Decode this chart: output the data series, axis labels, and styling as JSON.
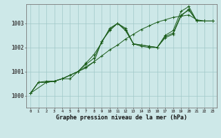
{
  "title": "Graphe pression niveau de la mer (hPa)",
  "bg_color": "#cde8e8",
  "line_color": "#1a5c1a",
  "grid_color": "#a0c8c8",
  "xlim": [
    -0.5,
    23.5
  ],
  "ylim": [
    999.5,
    1003.8
  ],
  "yticks": [
    1000,
    1001,
    1002,
    1003
  ],
  "xticks": [
    0,
    1,
    2,
    3,
    4,
    5,
    6,
    7,
    8,
    9,
    10,
    11,
    12,
    13,
    14,
    15,
    16,
    17,
    18,
    19,
    20,
    21,
    22,
    23
  ],
  "series": [
    {
      "x": [
        0,
        1,
        2,
        3,
        4,
        5,
        6,
        7,
        8,
        9,
        10,
        11,
        12,
        13,
        14,
        15,
        16,
        17,
        18,
        19,
        20,
        21,
        22,
        23
      ],
      "y": [
        1000.1,
        1000.55,
        1000.6,
        1000.6,
        1000.7,
        1000.85,
        1001.0,
        1001.2,
        1001.4,
        1001.65,
        1001.9,
        1002.1,
        1002.35,
        1002.55,
        1002.75,
        1002.9,
        1003.05,
        1003.15,
        1003.25,
        1003.3,
        1003.35,
        1003.15,
        1003.1,
        1003.1
      ]
    },
    {
      "x": [
        0,
        1,
        2,
        3,
        4,
        5,
        6,
        7,
        8,
        9,
        10,
        11,
        12,
        13,
        14,
        15,
        16,
        17,
        18,
        19,
        20,
        21,
        22,
        23
      ],
      "y": [
        1000.1,
        1000.55,
        1000.55,
        1000.6,
        1000.7,
        1000.85,
        1001.0,
        1001.15,
        1001.4,
        1002.25,
        1002.75,
        1003.0,
        1002.75,
        1002.15,
        1002.05,
        1002.0,
        1002.0,
        1002.45,
        1002.6,
        1003.35,
        1003.55,
        1003.1,
        1003.1,
        1003.1
      ]
    },
    {
      "x": [
        0,
        1,
        2,
        3,
        4,
        5,
        6,
        7,
        8,
        9,
        10,
        11,
        12,
        13,
        14,
        15,
        16,
        17,
        18,
        19,
        20,
        21,
        22,
        23
      ],
      "y": [
        1000.1,
        1000.55,
        1000.55,
        1000.6,
        1000.7,
        1000.85,
        1001.0,
        1001.35,
        1001.7,
        1002.2,
        1002.8,
        1003.0,
        1002.8,
        1002.15,
        1002.1,
        1002.05,
        1002.0,
        1002.5,
        1002.7,
        1003.5,
        1003.7,
        1003.1,
        1003.1,
        1003.1
      ]
    },
    {
      "x": [
        0,
        2,
        3,
        4,
        5,
        6,
        7,
        8,
        9,
        10,
        11,
        12,
        13,
        14,
        15,
        16,
        17,
        18,
        19,
        20,
        21,
        22,
        23
      ],
      "y": [
        1000.1,
        1000.55,
        1000.6,
        1000.7,
        1000.7,
        1001.0,
        1001.3,
        1001.55,
        1002.25,
        1002.7,
        1003.0,
        1002.7,
        1002.15,
        1002.1,
        1002.05,
        1002.0,
        1002.4,
        1002.55,
        1003.3,
        1003.6,
        1003.1,
        1003.1,
        1003.1
      ]
    }
  ]
}
